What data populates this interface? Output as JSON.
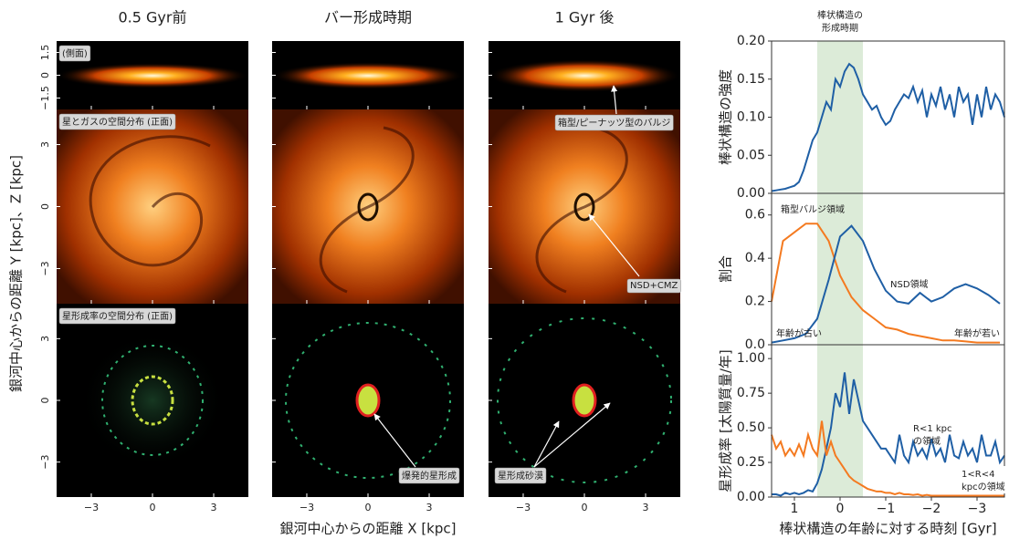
{
  "image_grid": {
    "columns": [
      "0.5 Gyr前",
      "バー形成時期",
      "1 Gyr 後"
    ],
    "rows": [
      {
        "label": "(側面)",
        "ylim": [
          -2.25,
          2.25
        ],
        "yticks": [
          1.5,
          0,
          {
            "value": -1.5,
            "label": "−1.5"
          }
        ]
      },
      {
        "label": "星とガスの空間分布 (正面)",
        "ylim": [
          -4.7,
          4.7
        ],
        "yticks": [
          3,
          0,
          {
            "value": -3,
            "label": "−3"
          }
        ]
      },
      {
        "label": "星形成率の空間分布 (正面)",
        "ylim": [
          -4.7,
          4.7
        ],
        "yticks": [
          3,
          0,
          {
            "value": -3,
            "label": "−3"
          }
        ]
      }
    ],
    "xlim": [
      -4.7,
      4.7
    ],
    "xticks": [
      {
        "value": -3,
        "label": "−3"
      },
      0,
      3
    ],
    "xlabel": "銀河中心からの距離 X [kpc]",
    "ylabel": "銀河中心からの距離 Y [kpc]、Z [kpc]",
    "annotations": [
      "箱型/ピーナッツ型のバルジ",
      "NSD+CMZ",
      "爆発的星形成",
      "星形成砂漠"
    ]
  },
  "chart_data": [
    {
      "type": "line",
      "annotation": [
        "棒状構造の",
        "形成時期"
      ],
      "ylabel": "棒状構造の強度",
      "highlight": [
        0.5,
        -0.5
      ],
      "highlight_color": "#dcebd8",
      "xlim": [
        1.5,
        -3.6
      ],
      "ylim": [
        0,
        0.2
      ],
      "yticks": [
        {
          "value": 0,
          "label": "0.00"
        },
        0.05,
        {
          "value": 0.1,
          "label": "0.10"
        },
        0.15,
        {
          "value": 0.2,
          "label": "0.20"
        }
      ],
      "x": [
        1.5,
        1.4,
        1.3,
        1.2,
        1.1,
        1.0,
        0.9,
        0.8,
        0.7,
        0.6,
        0.5,
        0.4,
        0.3,
        0.2,
        0.1,
        0.0,
        -0.1,
        -0.2,
        -0.3,
        -0.4,
        -0.5,
        -0.6,
        -0.7,
        -0.8,
        -0.9,
        -1.0,
        -1.1,
        -1.2,
        -1.3,
        -1.4,
        -1.5,
        -1.6,
        -1.7,
        -1.8,
        -1.9,
        -2.0,
        -2.1,
        -2.2,
        -2.3,
        -2.4,
        -2.5,
        -2.6,
        -2.7,
        -2.8,
        -2.9,
        -3.0,
        -3.1,
        -3.2,
        -3.3,
        -3.4,
        -3.5,
        -3.6
      ],
      "series": [
        {
          "color": "#1f5fa5",
          "values": [
            0.003,
            0.004,
            0.005,
            0.006,
            0.008,
            0.01,
            0.015,
            0.03,
            0.05,
            0.07,
            0.08,
            0.1,
            0.12,
            0.11,
            0.15,
            0.14,
            0.16,
            0.17,
            0.165,
            0.15,
            0.13,
            0.12,
            0.11,
            0.115,
            0.1,
            0.09,
            0.095,
            0.11,
            0.12,
            0.13,
            0.125,
            0.14,
            0.12,
            0.135,
            0.1,
            0.13,
            0.115,
            0.14,
            0.11,
            0.13,
            0.1,
            0.14,
            0.12,
            0.13,
            0.09,
            0.13,
            0.1,
            0.14,
            0.11,
            0.13,
            0.12,
            0.1
          ]
        }
      ]
    },
    {
      "type": "line",
      "ylabel": "割合",
      "annotations": [
        "年齢が古い",
        "年齢が若い"
      ],
      "highlight": [
        0.5,
        -0.5
      ],
      "highlight_color": "#dcebd8",
      "xlim": [
        1.5,
        -3.6
      ],
      "ylim": [
        0,
        0.7
      ],
      "yticks": [
        {
          "value": 0,
          "label": "0.0"
        },
        0.2,
        0.4,
        0.6
      ],
      "x": [
        1.5,
        1.25,
        1.0,
        0.75,
        0.5,
        0.25,
        0.0,
        -0.25,
        -0.5,
        -0.75,
        -1.0,
        -1.25,
        -1.5,
        -1.75,
        -2.0,
        -2.25,
        -2.5,
        -2.75,
        -3.0,
        -3.25,
        -3.5
      ],
      "series": [
        {
          "name": [
            "箱型バルジ領域"
          ],
          "color": "#f47a20",
          "values": [
            0.2,
            0.48,
            0.52,
            0.56,
            0.56,
            0.48,
            0.32,
            0.22,
            0.16,
            0.12,
            0.08,
            0.07,
            0.05,
            0.04,
            0.03,
            0.02,
            0.02,
            0.015,
            0.01,
            0.01,
            0.01
          ]
        },
        {
          "name": [
            "NSD領域"
          ],
          "color": "#1f5fa5",
          "values": [
            0.01,
            0.02,
            0.03,
            0.05,
            0.12,
            0.3,
            0.5,
            0.55,
            0.48,
            0.35,
            0.25,
            0.2,
            0.19,
            0.24,
            0.2,
            0.22,
            0.26,
            0.28,
            0.26,
            0.23,
            0.19
          ]
        }
      ]
    },
    {
      "type": "line",
      "ylabel": "星形成率 [太陽質量/年]",
      "xlabel": "棒状構造の年齢に対する時刻 [Gyr]",
      "highlight": [
        0.5,
        -0.5
      ],
      "highlight_color": "#dcebd8",
      "xlim": [
        1.5,
        -3.6
      ],
      "ylim": [
        0,
        1.1
      ],
      "xticks": [
        1,
        0,
        {
          "value": -1,
          "label": "−1"
        },
        {
          "value": -2,
          "label": "−2"
        },
        {
          "value": -3,
          "label": "−3"
        }
      ],
      "yticks": [
        {
          "value": 0,
          "label": "0.00"
        },
        0.25,
        {
          "value": 0.5,
          "label": "0.50"
        },
        0.75,
        {
          "value": 1,
          "label": "1.00"
        }
      ],
      "x": [
        1.5,
        1.4,
        1.3,
        1.2,
        1.1,
        1.0,
        0.9,
        0.8,
        0.7,
        0.6,
        0.5,
        0.4,
        0.3,
        0.2,
        0.1,
        0.0,
        -0.1,
        -0.2,
        -0.3,
        -0.4,
        -0.5,
        -0.6,
        -0.7,
        -0.8,
        -0.9,
        -1.0,
        -1.1,
        -1.2,
        -1.3,
        -1.4,
        -1.5,
        -1.6,
        -1.7,
        -1.8,
        -1.9,
        -2.0,
        -2.1,
        -2.2,
        -2.3,
        -2.4,
        -2.5,
        -2.6,
        -2.7,
        -2.8,
        -2.9,
        -3.0,
        -3.1,
        -3.2,
        -3.3,
        -3.4,
        -3.5,
        -3.6
      ],
      "series": [
        {
          "name": [
            "R<1 kpc",
            "の領域"
          ],
          "color": "#1f5fa5",
          "values": [
            0.02,
            0.02,
            0.01,
            0.03,
            0.02,
            0.03,
            0.02,
            0.03,
            0.05,
            0.04,
            0.1,
            0.2,
            0.35,
            0.5,
            0.75,
            0.65,
            0.9,
            0.6,
            0.85,
            0.7,
            0.55,
            0.5,
            0.45,
            0.4,
            0.35,
            0.35,
            0.3,
            0.25,
            0.45,
            0.3,
            0.25,
            0.4,
            0.3,
            0.35,
            0.28,
            0.42,
            0.3,
            0.35,
            0.25,
            0.45,
            0.3,
            0.28,
            0.4,
            0.3,
            0.35,
            0.25,
            0.45,
            0.3,
            0.3,
            0.4,
            0.25,
            0.3
          ]
        },
        {
          "name": [
            "1<R<4",
            "kpcの領域"
          ],
          "color": "#f47a20",
          "values": [
            0.45,
            0.35,
            0.4,
            0.3,
            0.35,
            0.3,
            0.38,
            0.3,
            0.45,
            0.35,
            0.3,
            0.55,
            0.3,
            0.4,
            0.3,
            0.25,
            0.2,
            0.15,
            0.12,
            0.1,
            0.08,
            0.06,
            0.05,
            0.04,
            0.04,
            0.03,
            0.03,
            0.02,
            0.03,
            0.02,
            0.02,
            0.015,
            0.02,
            0.01,
            0.015,
            0.01,
            0.01,
            0.01,
            0.01,
            0.01,
            0.01,
            0.01,
            0.01,
            0.01,
            0.01,
            0.01,
            0.01,
            0.01,
            0.01,
            0.01,
            0.01,
            0.01
          ]
        }
      ]
    }
  ]
}
